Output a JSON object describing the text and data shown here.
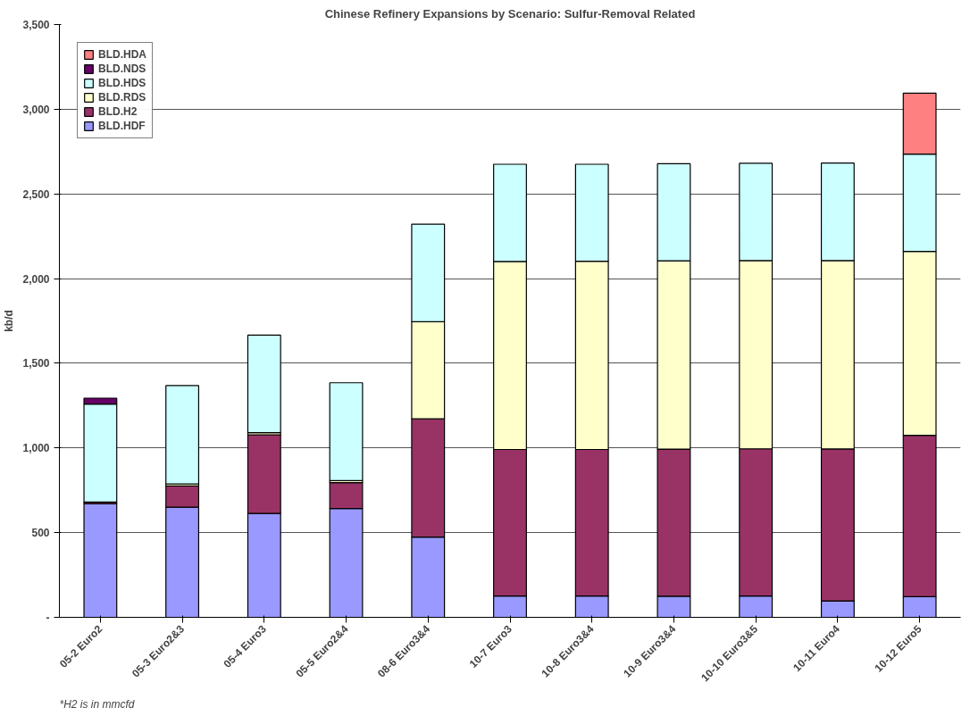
{
  "chart_data": {
    "type": "bar",
    "title": "Chinese Refinery Expansions by Scenario: Sulfur-Removal Related",
    "ylabel": "kb/d",
    "categories": [
      "05-2 Euro2",
      "05-3 Euro2&3",
      "05-4 Euro3",
      "05-5 Euro2&4",
      "08-6 Euro3&4",
      "10-7 Euro3",
      "10-8 Euro3&4",
      "10-9 Euro3&4",
      "10-10 Euro3&5",
      "10-11 Euro4",
      "10-12 Euro5"
    ],
    "stacked": true,
    "series": [
      {
        "name": "BLD.HDF",
        "color": "#9999ff",
        "values": [
          671,
          650,
          613,
          642,
          474,
          126,
          126,
          125,
          126,
          97,
          122
        ]
      },
      {
        "name": "BLD.H2",
        "color": "#993366",
        "values": [
          10,
          126,
          465,
          153,
          698,
          865,
          865,
          868,
          869,
          897,
          953
        ]
      },
      {
        "name": "BLD.RDS",
        "color": "#ffffcc",
        "values": [
          0,
          12,
          12,
          12,
          573,
          1110,
          1112,
          1112,
          1111,
          1112,
          1085
        ]
      },
      {
        "name": "BLD.HDS",
        "color": "#ccffff",
        "values": [
          578,
          580,
          576,
          578,
          576,
          574,
          572,
          573,
          575,
          576,
          575
        ]
      },
      {
        "name": "BLD.NDS",
        "color": "#660066",
        "values": [
          35,
          0,
          0,
          0,
          0,
          0,
          0,
          0,
          0,
          0,
          0
        ]
      },
      {
        "name": "BLD.HDA",
        "color": "#ff8080",
        "values": [
          0,
          0,
          0,
          0,
          0,
          0,
          0,
          0,
          0,
          0,
          360
        ]
      }
    ],
    "ylim": [
      0,
      3500
    ],
    "yticks": [
      {
        "value": 0,
        "label": "-"
      },
      {
        "value": 500,
        "label": "500"
      },
      {
        "value": 1000,
        "label": "1,000"
      },
      {
        "value": 1500,
        "label": "1,500"
      },
      {
        "value": 2000,
        "label": "2,000"
      },
      {
        "value": 2500,
        "label": "2,500"
      },
      {
        "value": 3000,
        "label": "3,000"
      },
      {
        "value": 3500,
        "label": "3,500"
      }
    ],
    "grid": "y",
    "legend": "top left",
    "annotations": [
      "*H2 is in mmcfd"
    ]
  }
}
